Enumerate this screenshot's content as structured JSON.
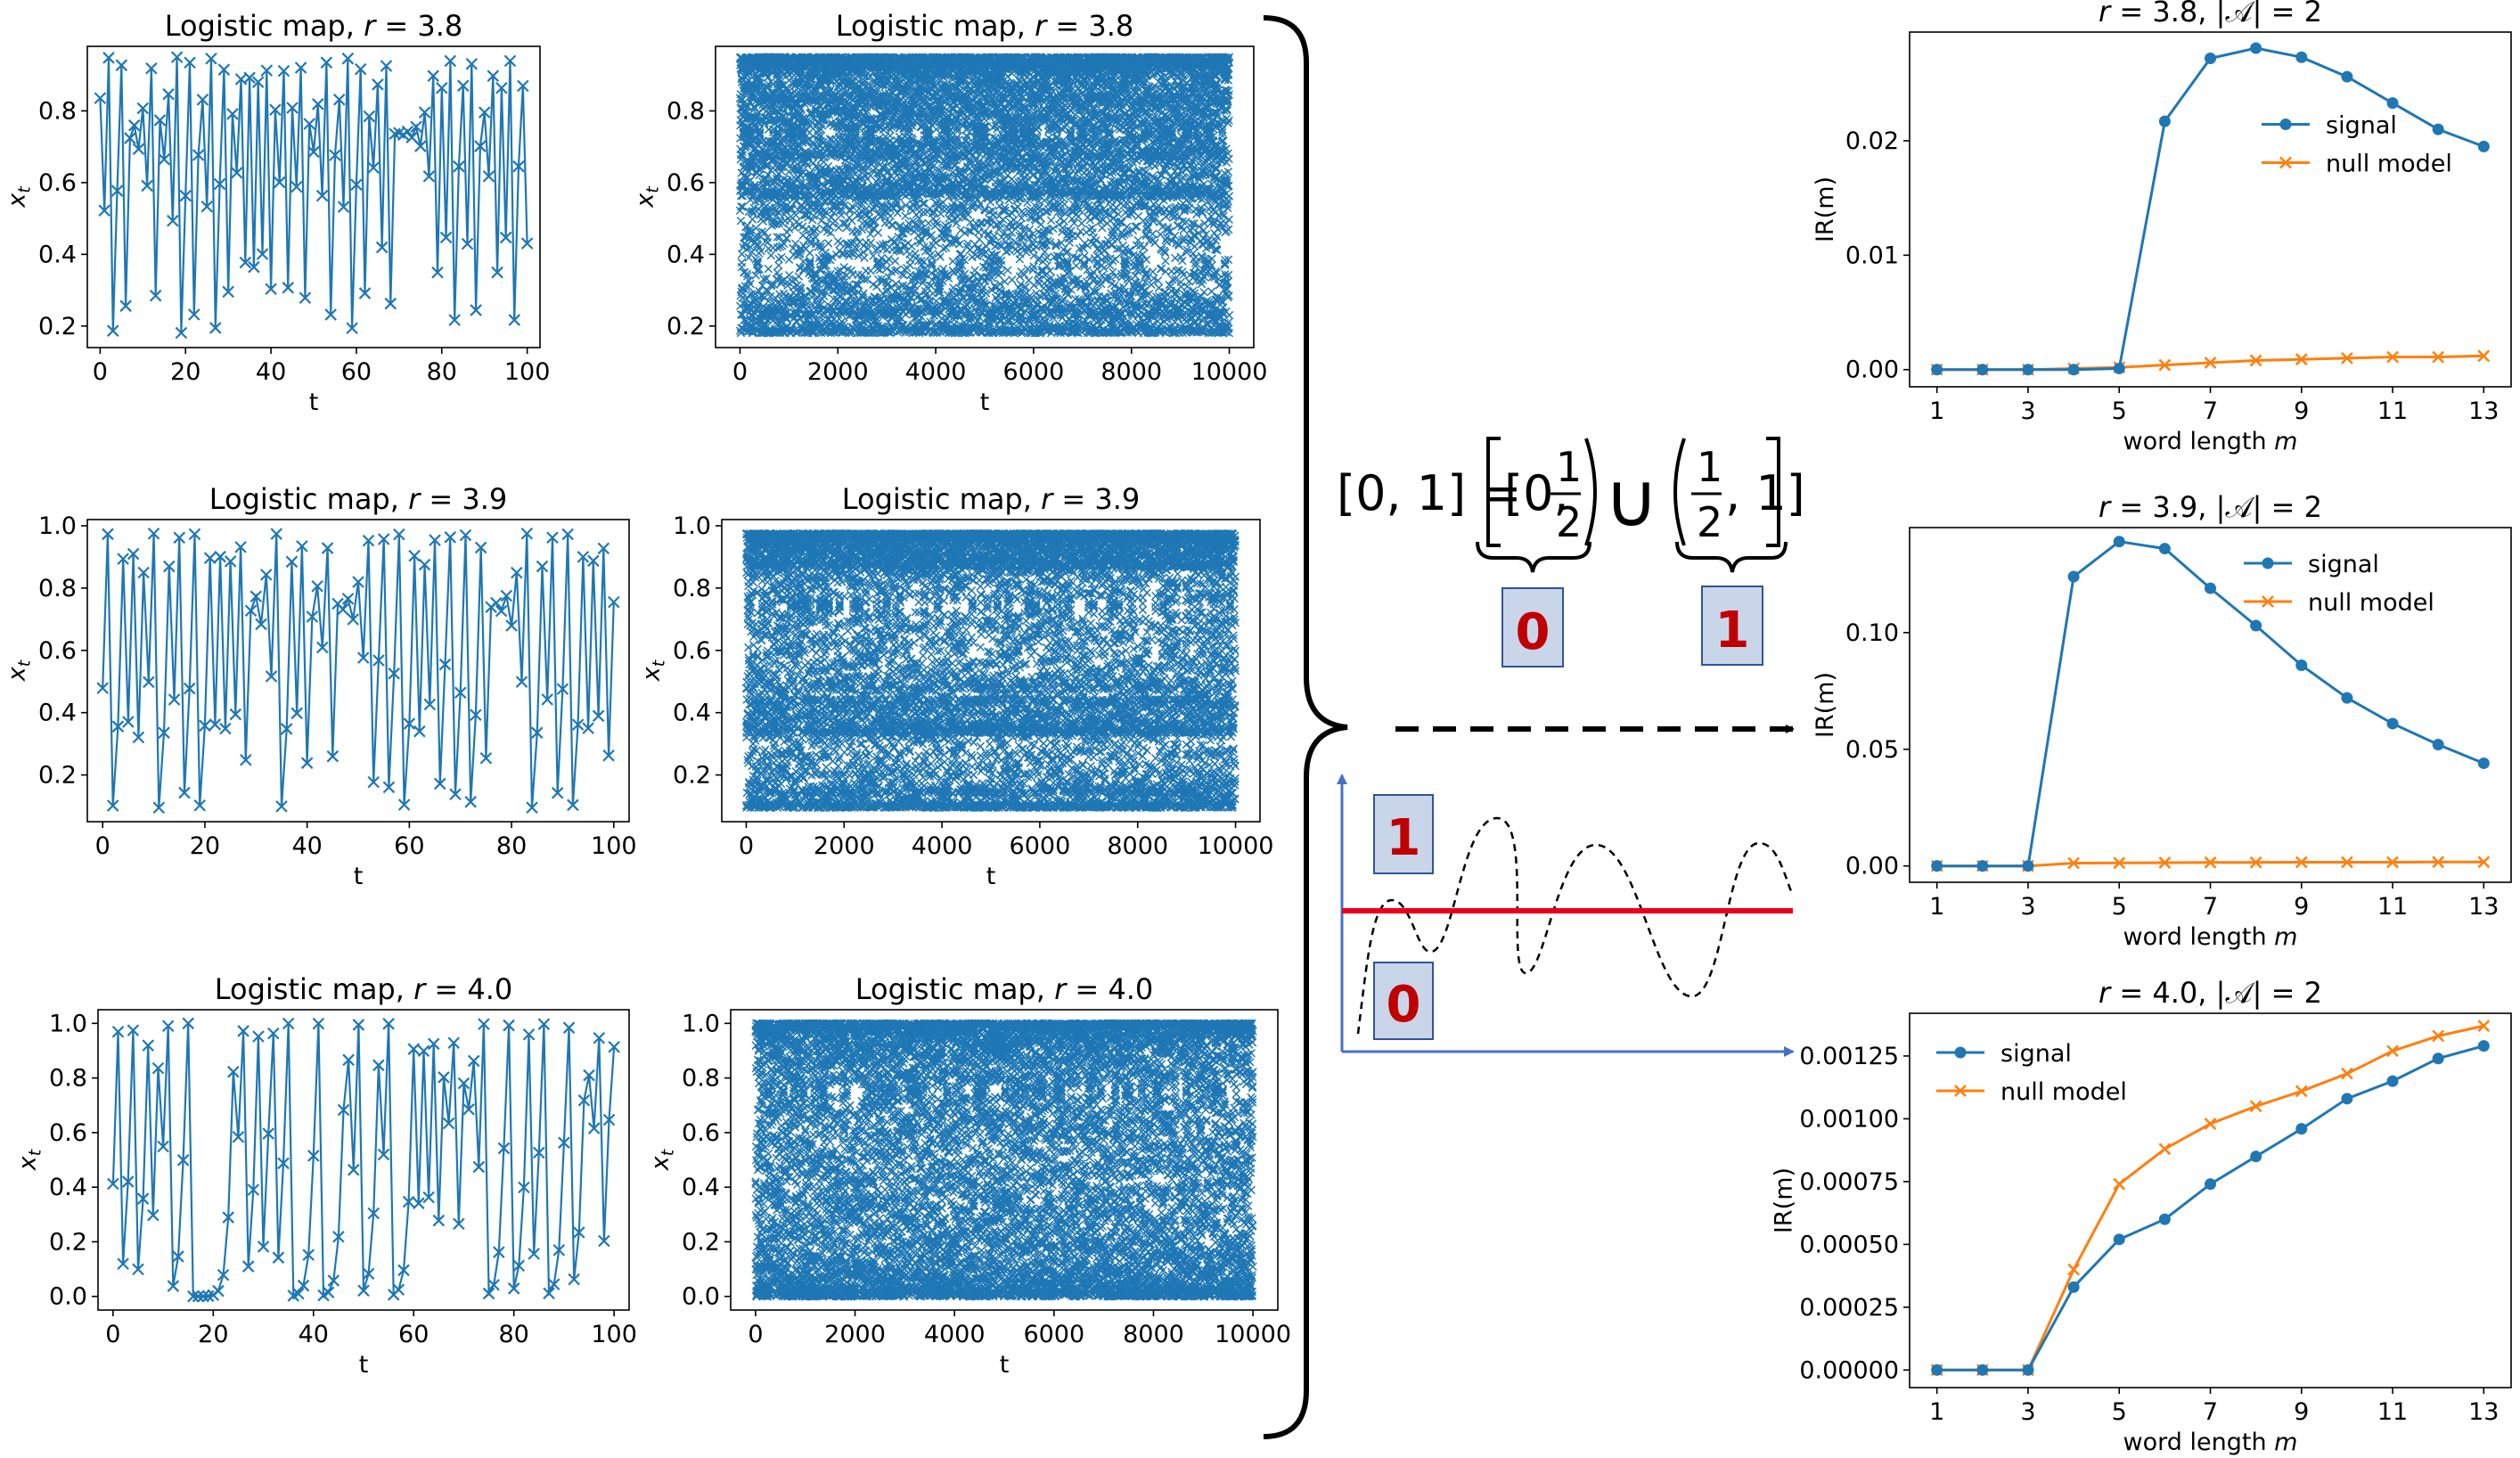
{
  "colors": {
    "signal": "#1f77b4",
    "null_model": "#ff7f0e",
    "threshold": "#e8001c",
    "axis": "#4472c4",
    "label_box_fill": "#c9d6ea",
    "label_box_stroke": "#2f5597",
    "label_text": "#c00000"
  },
  "symbol_labels": {
    "zero": "0",
    "one": "1"
  },
  "partition": {
    "lhs": "[0, 1] =",
    "left_interval_open": "[0,",
    "right_interval_close": "1)",
    "right_interval_open": "(",
    "right_interval_end": ", 1]",
    "half_num": "1",
    "half_den": "2",
    "union": "∪"
  },
  "chart_data": [
    {
      "id": "ts-3.8-short",
      "type": "line",
      "marker": "x",
      "title_prefix": "Logistic map, ",
      "title_var": "r",
      "title_suffix": " = 3.8",
      "xlabel": "t",
      "ylabel_var": "x",
      "ylabel_sub": "t",
      "xlim": [
        -3,
        103
      ],
      "ylim": [
        0.14,
        0.98
      ],
      "xticks": [
        0,
        20,
        40,
        60,
        80,
        100
      ],
      "xtick_labels": [
        "0",
        "20",
        "40",
        "60",
        "80",
        "100"
      ],
      "yticks": [
        0.2,
        0.4,
        0.6,
        0.8
      ],
      "ytick_labels": [
        "0.2",
        "0.4",
        "0.6",
        "0.8"
      ],
      "series": [
        {
          "name": "x_t",
          "r": 3.8,
          "x0": 0.8356,
          "n": 101
        }
      ]
    },
    {
      "id": "ts-3.8-long",
      "type": "scatter",
      "marker": "x",
      "title_prefix": "Logistic map, ",
      "title_var": "r",
      "title_suffix": " = 3.8",
      "xlabel": "t",
      "ylabel_var": "x",
      "ylabel_sub": "t",
      "xlim": [
        -500,
        10500
      ],
      "ylim": [
        0.14,
        0.98
      ],
      "xticks": [
        0,
        2000,
        4000,
        6000,
        8000,
        10000
      ],
      "xtick_labels": [
        "0",
        "2000",
        "4000",
        "6000",
        "8000",
        "10000"
      ],
      "yticks": [
        0.2,
        0.4,
        0.6,
        0.8
      ],
      "ytick_labels": [
        "0.2",
        "0.4",
        "0.6",
        "0.8"
      ],
      "series": [
        {
          "name": "x_t",
          "r": 3.8,
          "x0": 0.8356,
          "n": 10000
        }
      ]
    },
    {
      "id": "ts-3.9-short",
      "type": "line",
      "marker": "x",
      "title_prefix": "Logistic map, ",
      "title_var": "r",
      "title_suffix": " = 3.9",
      "xlabel": "t",
      "ylabel_var": "x",
      "ylabel_sub": "t",
      "xlim": [
        -3,
        103
      ],
      "ylim": [
        0.05,
        1.02
      ],
      "xticks": [
        0,
        20,
        40,
        60,
        80,
        100
      ],
      "xtick_labels": [
        "0",
        "20",
        "40",
        "60",
        "80",
        "100"
      ],
      "yticks": [
        0.2,
        0.4,
        0.6,
        0.8,
        1.0
      ],
      "ytick_labels": [
        "0.2",
        "0.4",
        "0.6",
        "0.8",
        "1.0"
      ],
      "series": [
        {
          "name": "x_t",
          "r": 3.9,
          "x0": 0.4789,
          "n": 101
        }
      ]
    },
    {
      "id": "ts-3.9-long",
      "type": "scatter",
      "marker": "x",
      "title_prefix": "Logistic map, ",
      "title_var": "r",
      "title_suffix": " = 3.9",
      "xlabel": "t",
      "ylabel_var": "x",
      "ylabel_sub": "t",
      "xlim": [
        -500,
        10500
      ],
      "ylim": [
        0.05,
        1.02
      ],
      "xticks": [
        0,
        2000,
        4000,
        6000,
        8000,
        10000
      ],
      "xtick_labels": [
        "0",
        "2000",
        "4000",
        "6000",
        "8000",
        "10000"
      ],
      "yticks": [
        0.2,
        0.4,
        0.6,
        0.8,
        1.0
      ],
      "ytick_labels": [
        "0.2",
        "0.4",
        "0.6",
        "0.8",
        "1.0"
      ],
      "series": [
        {
          "name": "x_t",
          "r": 3.9,
          "x0": 0.4789,
          "n": 10000
        }
      ]
    },
    {
      "id": "ts-4.0-short",
      "type": "line",
      "marker": "x",
      "title_prefix": "Logistic map, ",
      "title_var": "r",
      "title_suffix": " = 4.0",
      "xlabel": "t",
      "ylabel_var": "x",
      "ylabel_sub": "t",
      "xlim": [
        -3,
        103
      ],
      "ylim": [
        -0.05,
        1.05
      ],
      "xticks": [
        0,
        20,
        40,
        60,
        80,
        100
      ],
      "xtick_labels": [
        "0",
        "20",
        "40",
        "60",
        "80",
        "100"
      ],
      "yticks": [
        0.0,
        0.2,
        0.4,
        0.6,
        0.8,
        1.0
      ],
      "ytick_labels": [
        "0.0",
        "0.2",
        "0.4",
        "0.6",
        "0.8",
        "1.0"
      ],
      "series": [
        {
          "name": "x_t",
          "r": 4.0,
          "x0": 0.4123,
          "n": 101
        }
      ]
    },
    {
      "id": "ts-4.0-long",
      "type": "scatter",
      "marker": "x",
      "title_prefix": "Logistic map, ",
      "title_var": "r",
      "title_suffix": " = 4.0",
      "xlabel": "t",
      "ylabel_var": "x",
      "ylabel_sub": "t",
      "xlim": [
        -500,
        10500
      ],
      "ylim": [
        -0.05,
        1.05
      ],
      "xticks": [
        0,
        2000,
        4000,
        6000,
        8000,
        10000
      ],
      "xtick_labels": [
        "0",
        "2000",
        "4000",
        "6000",
        "8000",
        "10000"
      ],
      "yticks": [
        0.0,
        0.2,
        0.4,
        0.6,
        0.8,
        1.0
      ],
      "ytick_labels": [
        "0.0",
        "0.2",
        "0.4",
        "0.6",
        "0.8",
        "1.0"
      ],
      "series": [
        {
          "name": "x_t",
          "r": 4.0,
          "x0": 0.4123,
          "n": 10000
        }
      ]
    },
    {
      "id": "ir-3.8",
      "type": "line",
      "title_prefix": "",
      "title_var": "r",
      "title_suffix": " = 3.8, |𝒜| = 2",
      "xlabel": "word length ",
      "xlabel_var": "m",
      "ylabel": "IR(m)",
      "xlim": [
        0.4,
        13.6
      ],
      "ylim": [
        -0.0015,
        0.0295
      ],
      "xticks": [
        1,
        3,
        5,
        7,
        9,
        11,
        13
      ],
      "xtick_labels": [
        "1",
        "3",
        "5",
        "7",
        "9",
        "11",
        "13"
      ],
      "yticks": [
        0.0,
        0.01,
        0.02
      ],
      "ytick_labels": [
        "0.00",
        "0.01",
        "0.02"
      ],
      "legend_position": "center-right",
      "x": [
        1,
        2,
        3,
        4,
        5,
        6,
        7,
        8,
        9,
        10,
        11,
        12,
        13
      ],
      "series": [
        {
          "name": "signal",
          "marker": "o",
          "values": [
            0.0,
            0.0,
            0.0,
            0.0,
            0.0001,
            0.0217,
            0.0272,
            0.0281,
            0.0273,
            0.0256,
            0.0233,
            0.021,
            0.0195
          ]
        },
        {
          "name": "null model",
          "marker": "x",
          "values": [
            0.0,
            0.0,
            0.0,
            0.0001,
            0.0002,
            0.0004,
            0.0006,
            0.0008,
            0.0009,
            0.001,
            0.0011,
            0.0011,
            0.0012
          ]
        }
      ]
    },
    {
      "id": "ir-3.9",
      "type": "line",
      "title_prefix": "",
      "title_var": "r",
      "title_suffix": " = 3.9, |𝒜| = 2",
      "xlabel": "word length ",
      "xlabel_var": "m",
      "ylabel": "IR(m)",
      "xlim": [
        0.4,
        13.6
      ],
      "ylim": [
        -0.007,
        0.145
      ],
      "xticks": [
        1,
        3,
        5,
        7,
        9,
        11,
        13
      ],
      "xtick_labels": [
        "1",
        "3",
        "5",
        "7",
        "9",
        "11",
        "13"
      ],
      "yticks": [
        0.0,
        0.05,
        0.1
      ],
      "ytick_labels": [
        "0.00",
        "0.05",
        "0.10"
      ],
      "legend_position": "top-right",
      "x": [
        1,
        2,
        3,
        4,
        5,
        6,
        7,
        8,
        9,
        10,
        11,
        12,
        13
      ],
      "series": [
        {
          "name": "signal",
          "marker": "o",
          "values": [
            0.0,
            0.0,
            0.0,
            0.124,
            0.139,
            0.136,
            0.119,
            0.103,
            0.086,
            0.072,
            0.061,
            0.052,
            0.044
          ]
        },
        {
          "name": "null model",
          "marker": "x",
          "values": [
            0.0,
            0.0,
            0.0,
            0.0012,
            0.0013,
            0.0014,
            0.0015,
            0.0015,
            0.0016,
            0.0016,
            0.0016,
            0.0017,
            0.0017
          ]
        }
      ]
    },
    {
      "id": "ir-4.0",
      "type": "line",
      "title_prefix": "",
      "title_var": "r",
      "title_suffix": " = 4.0, |𝒜| = 2",
      "xlabel": "word length ",
      "xlabel_var": "m",
      "ylabel": "IR(m)",
      "xlim": [
        0.4,
        13.6
      ],
      "ylim": [
        -7e-05,
        0.00142
      ],
      "xticks": [
        1,
        3,
        5,
        7,
        9,
        11,
        13
      ],
      "xtick_labels": [
        "1",
        "3",
        "5",
        "7",
        "9",
        "11",
        "13"
      ],
      "yticks": [
        0.0,
        0.00025,
        0.0005,
        0.00075,
        0.001,
        0.00125
      ],
      "ytick_labels": [
        "0.00000",
        "0.00025",
        "0.00050",
        "0.00075",
        "0.00100",
        "0.00125"
      ],
      "legend_position": "top-left",
      "x": [
        1,
        2,
        3,
        4,
        5,
        6,
        7,
        8,
        9,
        10,
        11,
        12,
        13
      ],
      "series": [
        {
          "name": "signal",
          "marker": "o",
          "values": [
            0.0,
            0.0,
            0.0,
            0.00033,
            0.00052,
            0.0006,
            0.00074,
            0.00085,
            0.00096,
            0.00108,
            0.00115,
            0.00124,
            0.00129
          ]
        },
        {
          "name": "null model",
          "marker": "x",
          "values": [
            0.0,
            0.0,
            0.0,
            0.0004,
            0.00074,
            0.00088,
            0.00098,
            0.00105,
            0.00111,
            0.00118,
            0.00127,
            0.00133,
            0.00137
          ]
        }
      ]
    }
  ]
}
